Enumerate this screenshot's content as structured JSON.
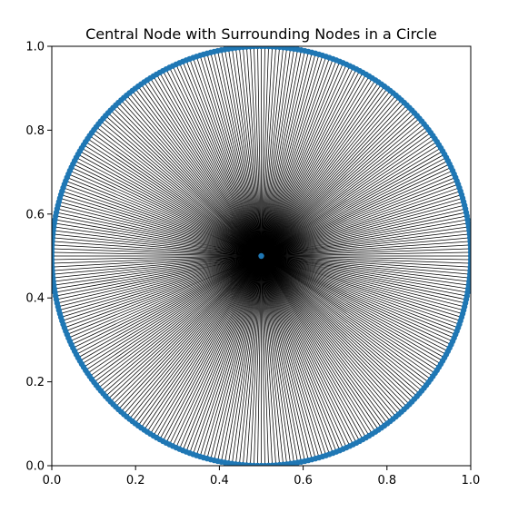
{
  "chart_data": {
    "type": "scatter",
    "title": "Central Node with Surrounding Nodes in a Circle",
    "xlabel": "",
    "ylabel": "",
    "xlim": [
      0.0,
      1.0
    ],
    "ylim": [
      0.0,
      1.0
    ],
    "x_ticks": [
      "0.0",
      "0.2",
      "0.4",
      "0.6",
      "0.8",
      "1.0"
    ],
    "y_ticks": [
      "0.0",
      "0.2",
      "0.4",
      "0.6",
      "0.8",
      "1.0"
    ],
    "grid": false,
    "legend": "none",
    "center": {
      "x": 0.5,
      "y": 0.5
    },
    "radius": 0.5,
    "node_count": 360,
    "edges": "each surrounding node connected to the central node",
    "node_color": "#1f77b4",
    "edge_color": "#000000"
  }
}
